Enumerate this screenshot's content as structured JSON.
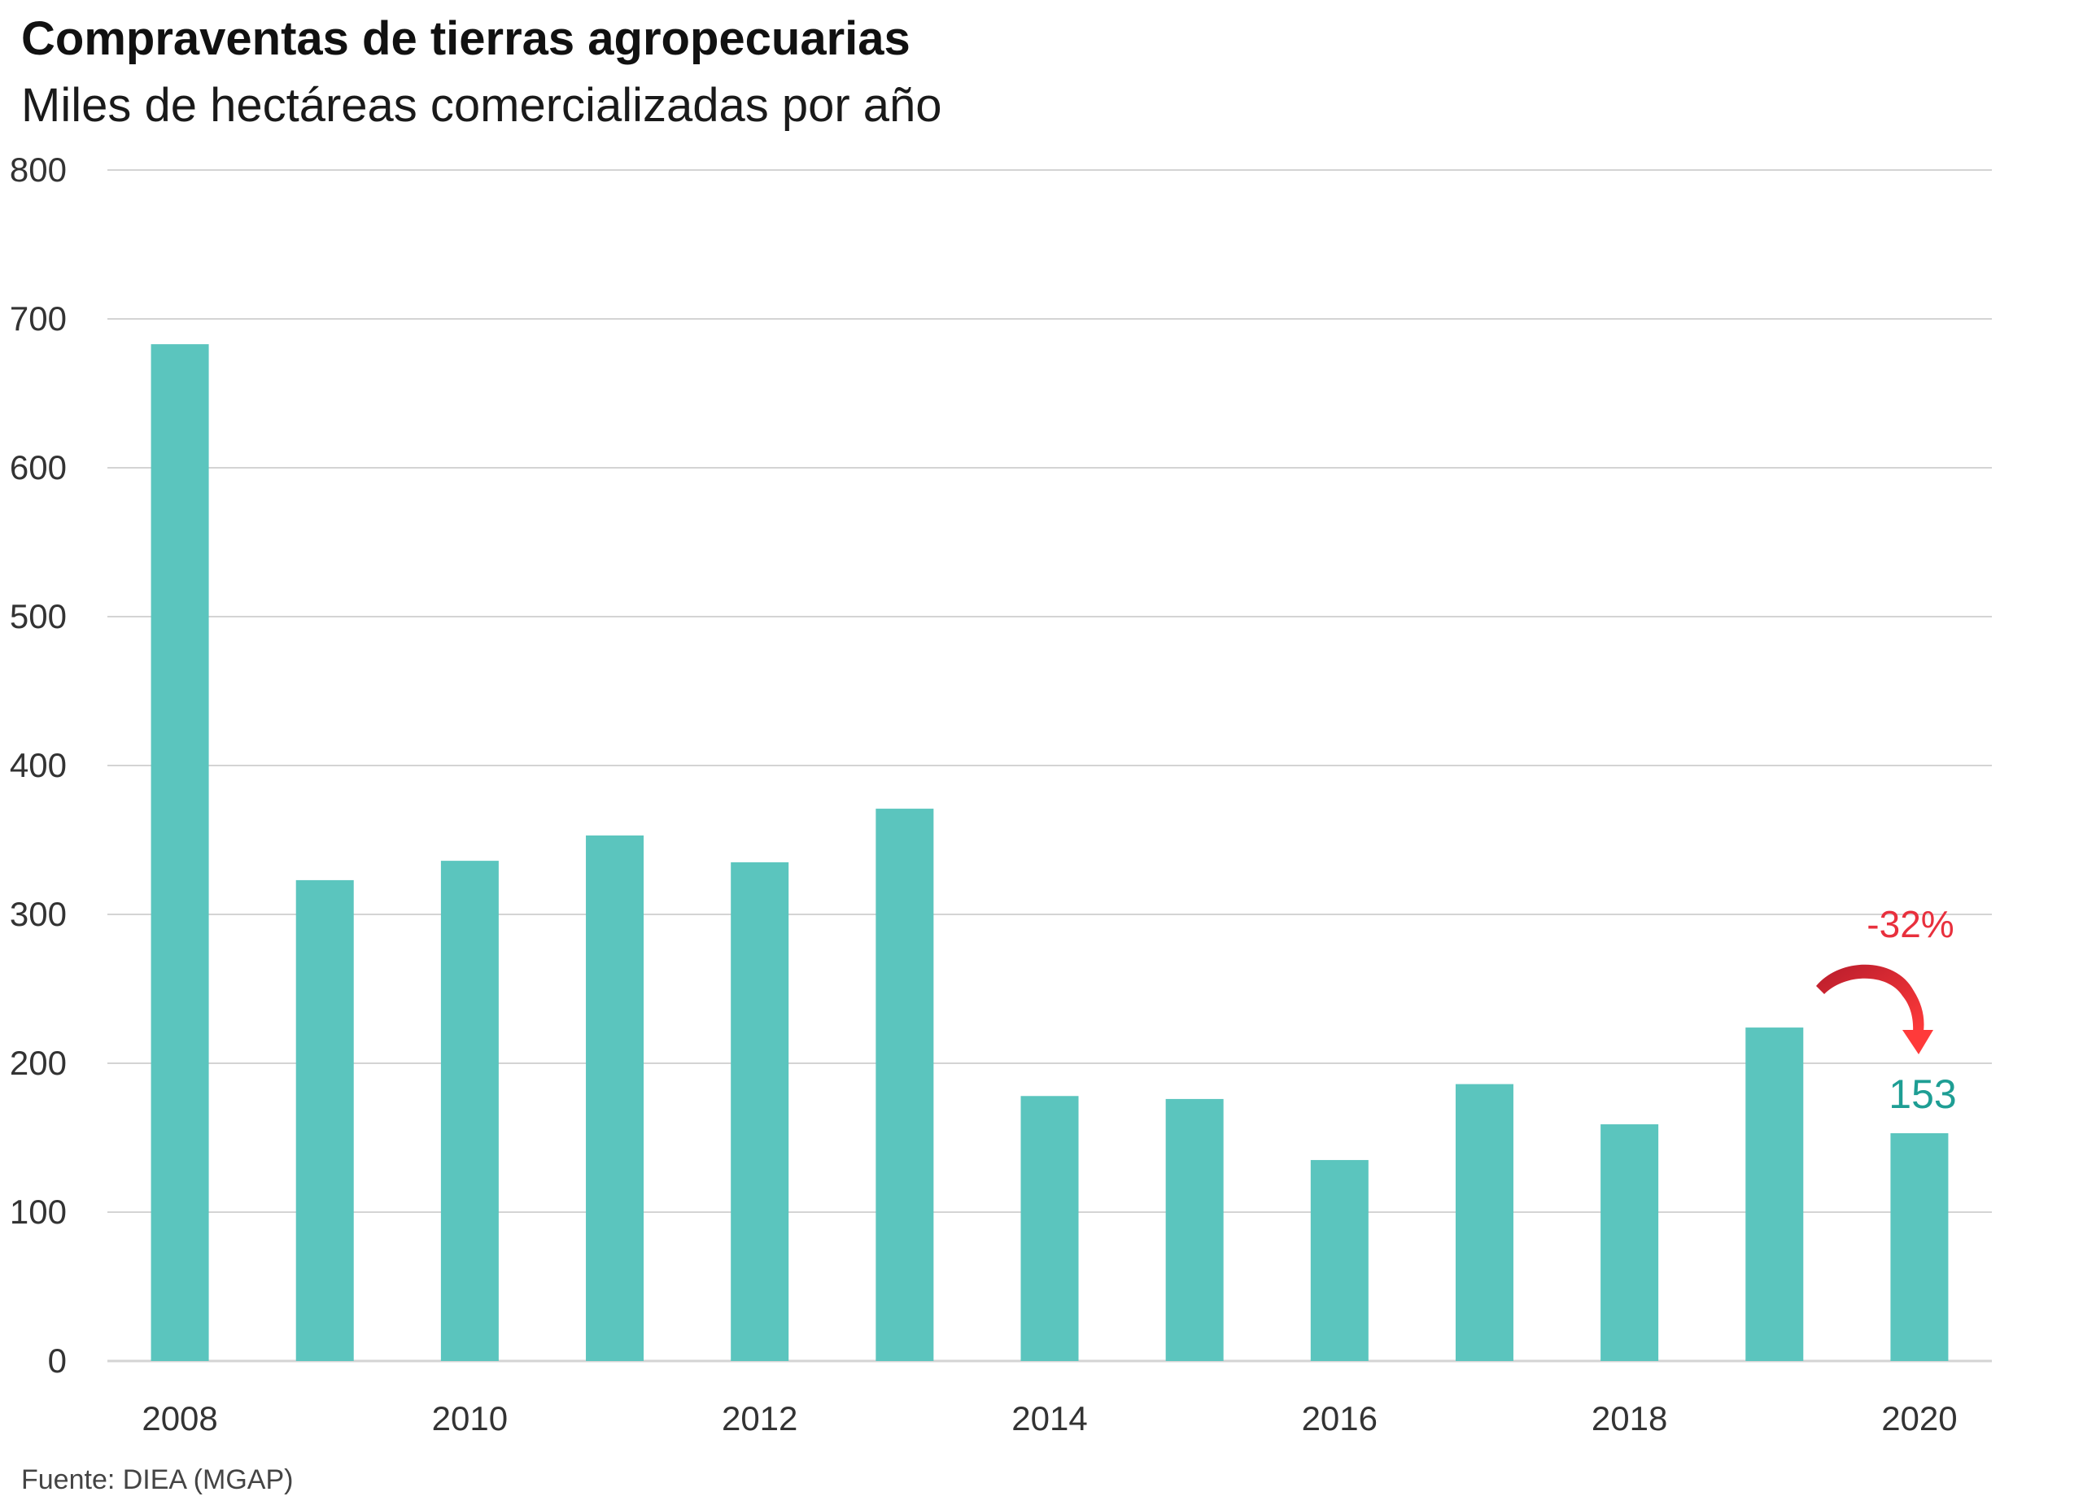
{
  "header": {
    "title": "Compraventas de tierras agropecuarias",
    "subtitle": "Miles de hectáreas comercializadas por año"
  },
  "footer": {
    "source": "Fuente: DIEA (MGAP)"
  },
  "chart_data": {
    "type": "bar",
    "categories": [
      "2008",
      "2009",
      "2010",
      "2011",
      "2012",
      "2013",
      "2014",
      "2015",
      "2016",
      "2017",
      "2018",
      "2019",
      "2020"
    ],
    "values": [
      683,
      323,
      336,
      353,
      335,
      371,
      178,
      176,
      135,
      186,
      159,
      224,
      153
    ],
    "x_tick_labels": [
      "2008",
      "2010",
      "2012",
      "2014",
      "2016",
      "2018",
      "2020"
    ],
    "y_ticks": [
      0,
      100,
      200,
      300,
      400,
      500,
      600,
      700,
      800
    ],
    "ylim": [
      0,
      800
    ],
    "grid": true,
    "legend": "none",
    "colors": {
      "bar": "#5bc5be",
      "grid": "#d4d4d4",
      "annotation_change": "#e8303d",
      "annotation_value": "#1e9e94"
    },
    "annotations": {
      "change_label": "-32%",
      "value_label": "153"
    }
  }
}
